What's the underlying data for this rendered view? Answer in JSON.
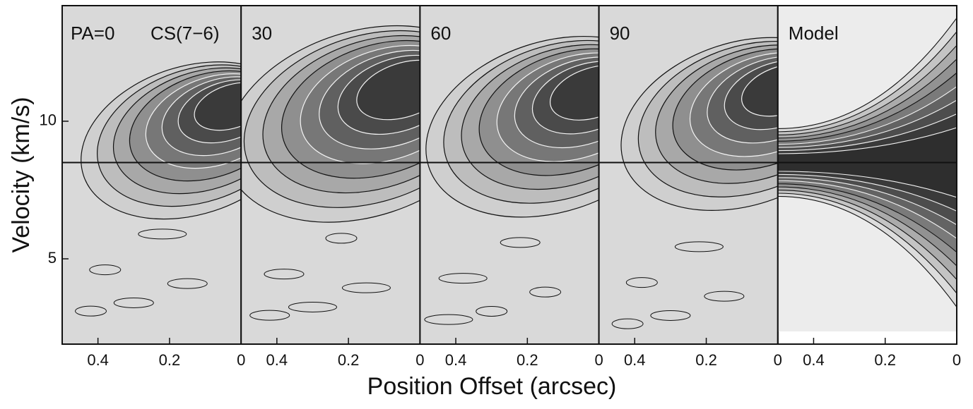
{
  "axis_labels": {
    "x": "Position Offset (arcsec)",
    "y": "Velocity (km/s)"
  },
  "chart_data": [
    {
      "type": "pv-map",
      "label": "PA=0",
      "annotation": "CS(7−6)",
      "xlim": [
        0.5,
        0
      ],
      "xticks": [
        0.4,
        0.2,
        0
      ],
      "ylim": [
        1.9,
        14.2
      ],
      "yticks": [
        5,
        10
      ],
      "reference_line": 8.5
    },
    {
      "type": "pv-map",
      "label": "30",
      "xlim": [
        0.5,
        0
      ],
      "xticks": [
        0.4,
        0.2,
        0
      ],
      "ylim": [
        1.9,
        14.2
      ],
      "reference_line": 8.5
    },
    {
      "type": "pv-map",
      "label": "60",
      "xlim": [
        0.5,
        0
      ],
      "xticks": [
        0.4,
        0.2,
        0
      ],
      "ylim": [
        1.9,
        14.2
      ],
      "reference_line": 8.5
    },
    {
      "type": "pv-map",
      "label": "90",
      "xlim": [
        0.5,
        0
      ],
      "xticks": [
        0.4,
        0.2,
        0
      ],
      "ylim": [
        1.9,
        14.2
      ],
      "reference_line": 8.5
    },
    {
      "type": "model-map",
      "label": "Model",
      "xlim": [
        0.5,
        0
      ],
      "xticks": [
        0.4,
        0.2,
        0
      ],
      "ylim": [
        1.9,
        14.2
      ],
      "reference_line": 8.5
    }
  ]
}
